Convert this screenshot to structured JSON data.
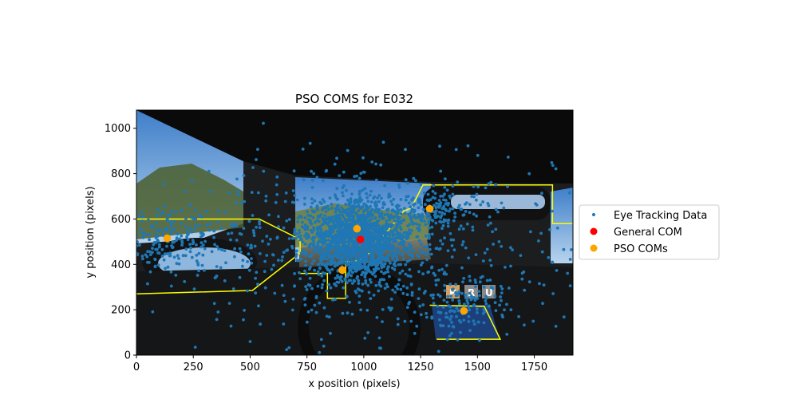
{
  "chart_data": {
    "type": "scatter",
    "title": "PSO COMS for E032",
    "xlabel": "x position (pixels)",
    "ylabel": "y position (pixels)",
    "xlim": [
      0,
      1920
    ],
    "ylim": [
      0,
      1080
    ],
    "xticks": [
      0,
      250,
      500,
      750,
      1000,
      1250,
      1500,
      1750
    ],
    "yticks": [
      0,
      200,
      400,
      600,
      800,
      1000
    ],
    "grid": false,
    "legend_position": "right",
    "background": "driving-simulator cockpit view with road, trees and sky",
    "series": [
      {
        "name": "Eye Tracking Data",
        "color": "#1f77b4",
        "marker": "small-dot",
        "clusters": [
          {
            "cx": 970,
            "cy": 510,
            "sx": 110,
            "sy": 85,
            "n": 1400
          },
          {
            "cx": 1000,
            "cy": 520,
            "sx": 330,
            "sy": 160,
            "n": 520
          },
          {
            "cx": 140,
            "cy": 500,
            "sx": 120,
            "sy": 70,
            "n": 200
          },
          {
            "cx": 1300,
            "cy": 640,
            "sx": 90,
            "sy": 40,
            "n": 110
          },
          {
            "cx": 1430,
            "cy": 220,
            "sx": 90,
            "sy": 60,
            "n": 130
          },
          {
            "cx": 960,
            "cy": 450,
            "sx": 650,
            "sy": 260,
            "n": 300
          }
        ]
      },
      {
        "name": "General COM",
        "color": "#ff0000",
        "marker": "circle",
        "points": [
          [
            985,
            510
          ]
        ]
      },
      {
        "name": "PSO COMs",
        "color": "#ffa500",
        "marker": "circle",
        "points": [
          [
            135,
            515
          ],
          [
            970,
            557
          ],
          [
            905,
            375
          ],
          [
            1290,
            645
          ],
          [
            1440,
            195
          ]
        ]
      }
    ],
    "aoi_regions": {
      "color": "#ffff00",
      "polygons": [
        [
          [
            0,
            600
          ],
          [
            540,
            600
          ],
          [
            720,
            510
          ],
          [
            720,
            450
          ],
          [
            510,
            285
          ],
          [
            0,
            270
          ]
        ],
        [
          [
            720,
            360
          ],
          [
            840,
            360
          ],
          [
            840,
            250
          ],
          [
            920,
            250
          ],
          [
            920,
            410
          ],
          [
            1000,
            420
          ],
          [
            1180,
            640
          ],
          [
            1190,
            640
          ],
          [
            1210,
            650
          ],
          [
            1260,
            750
          ],
          [
            1830,
            750
          ],
          [
            1830,
            580
          ],
          [
            1920,
            580
          ]
        ],
        [
          [
            1290,
            220
          ],
          [
            1530,
            215
          ],
          [
            1600,
            70
          ],
          [
            1320,
            70
          ]
        ]
      ]
    }
  }
}
